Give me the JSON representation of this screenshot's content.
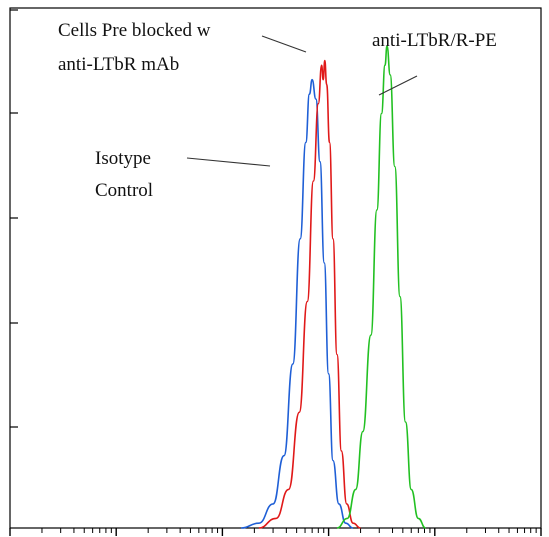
{
  "chart_data": {
    "type": "line",
    "title": "",
    "xlabel": "",
    "ylabel": "",
    "x_scale": "log",
    "xlim": [
      1,
      100000
    ],
    "ylim": [
      0,
      100
    ],
    "grid": false,
    "legend": "none",
    "series": [
      {
        "color": "#1f5fd6",
        "points": [
          [
            150,
            0
          ],
          [
            220,
            1
          ],
          [
            300,
            5
          ],
          [
            380,
            15
          ],
          [
            460,
            34
          ],
          [
            540,
            60
          ],
          [
            610,
            80
          ],
          [
            660,
            90
          ],
          [
            700,
            93
          ],
          [
            760,
            89
          ],
          [
            830,
            76
          ],
          [
            910,
            55
          ],
          [
            1000,
            32
          ],
          [
            1100,
            14
          ],
          [
            1250,
            5
          ],
          [
            1450,
            1
          ],
          [
            1700,
            0
          ]
        ]
      },
      {
        "color": "#e01919",
        "points": [
          [
            220,
            0
          ],
          [
            320,
            2
          ],
          [
            420,
            8
          ],
          [
            530,
            24
          ],
          [
            630,
            47
          ],
          [
            720,
            72
          ],
          [
            800,
            88
          ],
          [
            860,
            96
          ],
          [
            890,
            93
          ],
          [
            920,
            97
          ],
          [
            960,
            92
          ],
          [
            1020,
            80
          ],
          [
            1100,
            60
          ],
          [
            1200,
            36
          ],
          [
            1320,
            16
          ],
          [
            1480,
            5
          ],
          [
            1700,
            1
          ],
          [
            2000,
            0
          ]
        ]
      },
      {
        "color": "#22c022",
        "points": [
          [
            1200,
            0
          ],
          [
            1500,
            2
          ],
          [
            1800,
            8
          ],
          [
            2100,
            20
          ],
          [
            2500,
            40
          ],
          [
            2850,
            66
          ],
          [
            3150,
            86
          ],
          [
            3400,
            96
          ],
          [
            3550,
            100
          ],
          [
            3800,
            94
          ],
          [
            4200,
            75
          ],
          [
            4700,
            48
          ],
          [
            5300,
            22
          ],
          [
            6000,
            8
          ],
          [
            7000,
            2
          ],
          [
            8200,
            0
          ]
        ]
      }
    ],
    "annotations": [
      {
        "lines": [
          "Cells Pre blocked w",
          "anti-LTbR mAb"
        ]
      },
      {
        "lines": [
          "anti-LTbR/R-PE"
        ]
      },
      {
        "lines": [
          "Isotype",
          "Control"
        ]
      }
    ]
  }
}
